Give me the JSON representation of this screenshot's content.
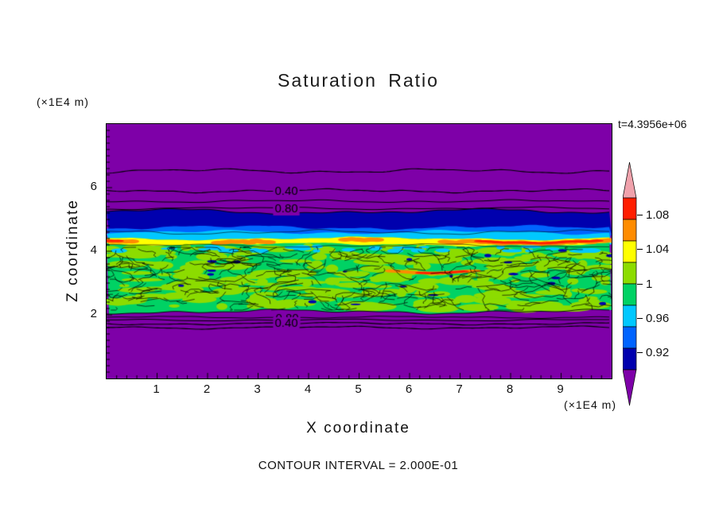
{
  "chart_data": {
    "type": "heatmap",
    "title": "Saturation Ratio",
    "xlabel": "X coordinate",
    "ylabel": "Z coordinate",
    "x_unit_label": "(×1E4 m)",
    "y_unit_label": "(×1E4 m)",
    "time_annotation": "t=4.3956e+06",
    "footer": "CONTOUR INTERVAL = 2.000E-01",
    "xlim": [
      0,
      10
    ],
    "ylim": [
      0,
      8
    ],
    "x_ticks": [
      1,
      2,
      3,
      4,
      5,
      6,
      7,
      8,
      9
    ],
    "y_ticks": [
      2,
      4,
      6
    ],
    "grid": false,
    "legend_position": "right-colorbar",
    "contour_labels_upper": [
      "0.40",
      "0.80"
    ],
    "contour_labels_lower": [
      "0.80",
      "0.40"
    ],
    "colorbar": {
      "tick_labels": [
        "1.08",
        "1.04",
        "1",
        "0.96",
        "0.92"
      ],
      "colors_top_to_bottom": [
        "#F0A2AC",
        "#FF1E00",
        "#FF8C00",
        "#FFFF00",
        "#8CDC00",
        "#00D264",
        "#00C8FF",
        "#0064FF",
        "#0000AE",
        "#7E00A8"
      ]
    },
    "field_colors": {
      "purple": "#7E00A8",
      "darkblue": "#0000AE",
      "blue": "#0064FF",
      "cyan": "#00C8FF",
      "green": "#00D264",
      "chartreuse": "#8CDC00",
      "yellow": "#FFFF00",
      "orange": "#FF8C00",
      "red": "#FF1E00",
      "pink": "#F0A2AC"
    },
    "regions": [
      {
        "desc": "uniform low-saturation background",
        "z_range": [
          5.3,
          8.0
        ],
        "color": "purple"
      },
      {
        "desc": "dark blue band",
        "z_range": [
          4.7,
          5.3
        ],
        "color": "darkblue"
      },
      {
        "desc": "cyan transition strip",
        "z_range": [
          4.5,
          4.7
        ],
        "color": "cyan"
      },
      {
        "desc": "high-saturation streak",
        "z_range": [
          4.3,
          4.5
        ],
        "color": "yellow-orange-red"
      },
      {
        "desc": "mottled saturated zone with contour speckles",
        "z_range": [
          2.1,
          4.3
        ],
        "color": "green-chartreuse"
      },
      {
        "desc": "uniform low-saturation background",
        "z_range": [
          0.0,
          2.1
        ],
        "color": "purple"
      }
    ]
  }
}
